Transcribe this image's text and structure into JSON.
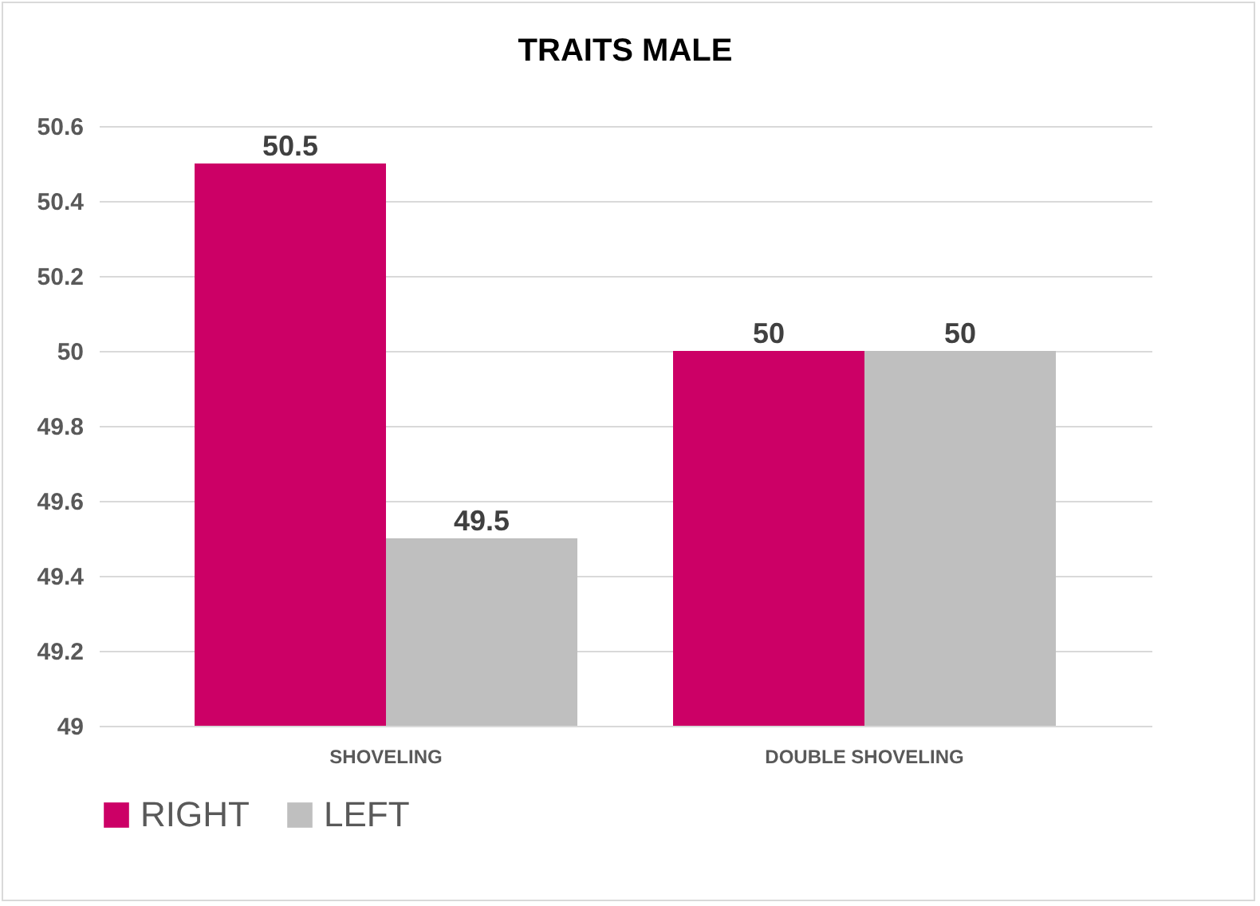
{
  "chart_data": {
    "type": "bar",
    "title": "TRAITS MALE",
    "categories": [
      "SHOVELING",
      "DOUBLE SHOVELING"
    ],
    "series": [
      {
        "name": "RIGHT",
        "color": "#cc0066",
        "values": [
          50.5,
          50
        ]
      },
      {
        "name": "LEFT",
        "color": "#bfbfbf",
        "values": [
          49.5,
          50
        ]
      }
    ],
    "ylim": [
      49,
      50.6
    ],
    "yticks": [
      49,
      49.2,
      49.4,
      49.6,
      49.8,
      50,
      50.2,
      50.4,
      50.6
    ],
    "grid": "y",
    "legend": "bottom",
    "data_labels": true
  }
}
